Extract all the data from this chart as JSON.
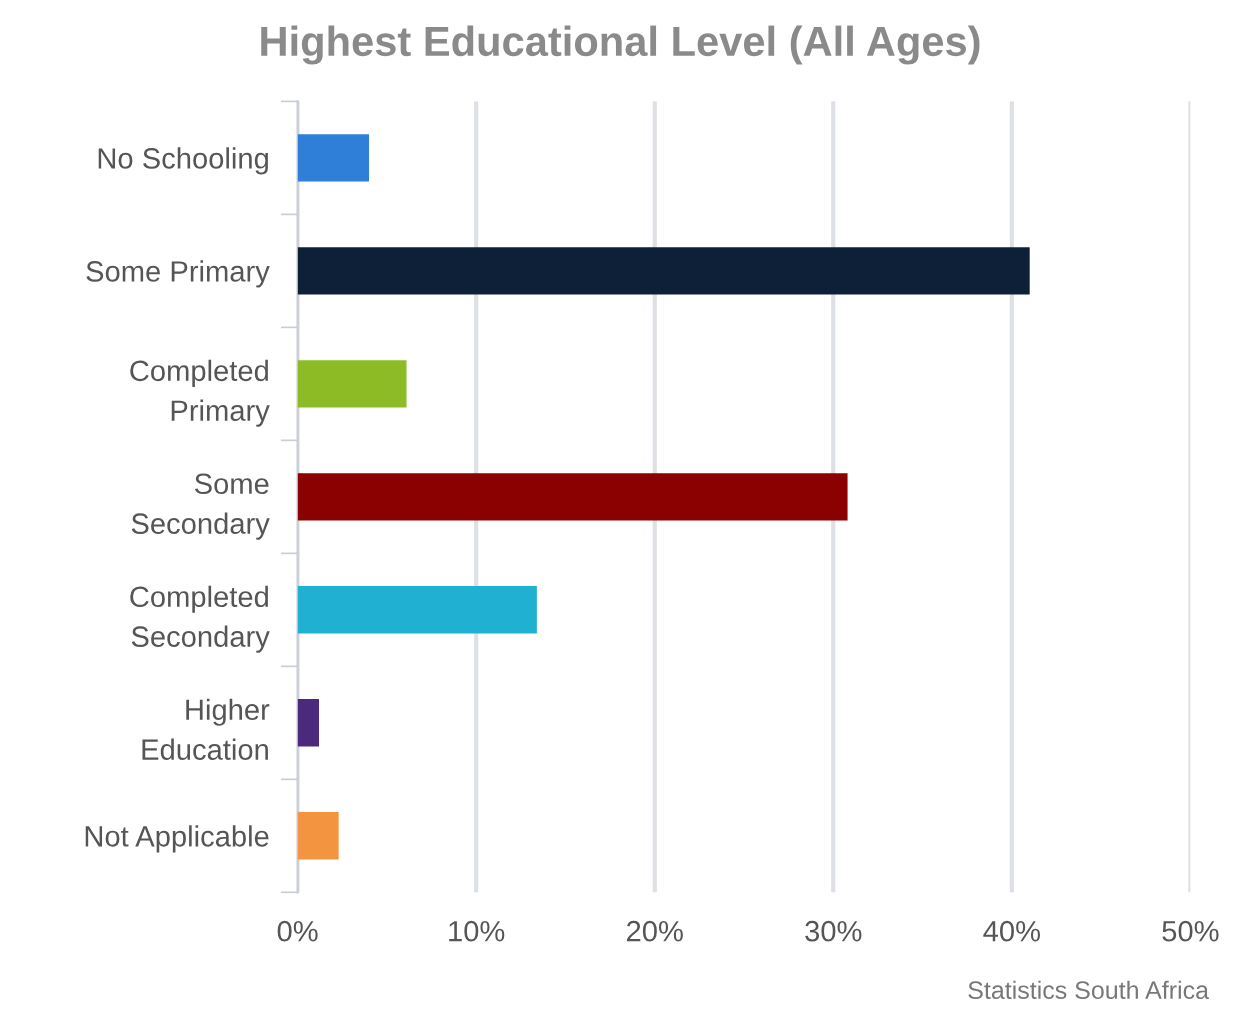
{
  "chart_data": {
    "type": "bar",
    "orientation": "horizontal",
    "title": "Highest Educational Level (All Ages)",
    "categories": [
      "No Schooling",
      "Some Primary",
      "Completed\nPrimary",
      "Some\nSecondary",
      "Completed\nSecondary",
      "Higher\nEducation",
      "Not Applicable"
    ],
    "values": [
      4.0,
      41.0,
      6.1,
      30.8,
      13.4,
      1.2,
      2.3
    ],
    "colors": [
      "#2f7fd8",
      "#0e1f38",
      "#8dbb25",
      "#8b0000",
      "#1fb0d2",
      "#4b2a7e",
      "#f39440"
    ],
    "xlim": [
      0,
      50
    ],
    "xticks": [
      {
        "value": 0,
        "label": "0%"
      },
      {
        "value": 10,
        "label": "10%"
      },
      {
        "value": 20,
        "label": "20%"
      },
      {
        "value": 30,
        "label": "30%"
      },
      {
        "value": 40,
        "label": "40%"
      },
      {
        "value": 50,
        "label": "50%"
      }
    ],
    "grid": "x",
    "annotations": [
      "Statistics South Africa"
    ]
  }
}
